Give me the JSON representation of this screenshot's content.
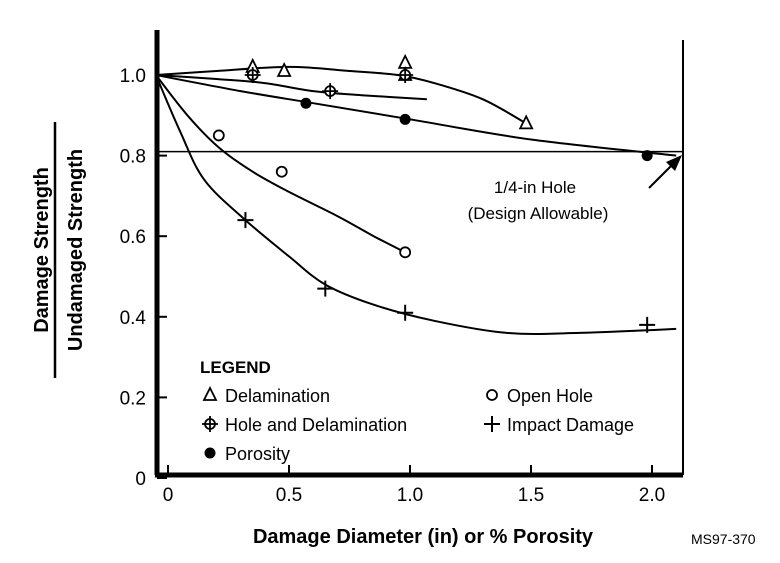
{
  "chart_data": {
    "type": "scatter",
    "title": "",
    "xlabel": "Damage Diameter (in) or % Porosity",
    "ylabel_top": "Damage Strength",
    "ylabel_bottom": "Undamaged Strength",
    "xlim": [
      -0.05,
      2.1
    ],
    "ylim": [
      0,
      1.13
    ],
    "x_ticks": [
      0,
      0.5,
      1.0,
      1.5,
      2.0
    ],
    "x_tick_labels": [
      "0",
      "0.5",
      "1.0",
      "1.5",
      "2.0"
    ],
    "y_ticks": [
      0,
      0.2,
      0.4,
      0.6,
      0.8,
      1.0
    ],
    "y_tick_labels": [
      "0",
      "0.2",
      "0.4",
      "0.6",
      "0.8",
      "1.0"
    ],
    "grid": false,
    "legend_title": "LEGEND",
    "legend_position": "bottom-left",
    "series": [
      {
        "name": "Delamination",
        "marker": "triangle-open",
        "points": [
          [
            0.35,
            1.02
          ],
          [
            0.48,
            1.01
          ],
          [
            0.98,
            1.03
          ],
          [
            0.98,
            1.0
          ],
          [
            1.48,
            0.88
          ]
        ],
        "curve": [
          [
            -0.05,
            1.0
          ],
          [
            0.2,
            1.01
          ],
          [
            0.5,
            1.02
          ],
          [
            0.75,
            1.01
          ],
          [
            0.95,
            1.0
          ],
          [
            1.1,
            0.98
          ],
          [
            1.3,
            0.94
          ],
          [
            1.48,
            0.88
          ]
        ]
      },
      {
        "name": "Hole and Delamination",
        "marker": "circle-cross",
        "points": [
          [
            0.35,
            1.0
          ],
          [
            0.67,
            0.96
          ],
          [
            0.98,
            1.0
          ]
        ],
        "curve": [
          [
            -0.05,
            1.0
          ],
          [
            0.2,
            0.99
          ],
          [
            0.4,
            0.98
          ],
          [
            0.6,
            0.96
          ],
          [
            0.8,
            0.95
          ],
          [
            1.07,
            0.94
          ]
        ]
      },
      {
        "name": "Porosity",
        "marker": "circle-filled",
        "points": [
          [
            0.57,
            0.93
          ],
          [
            0.98,
            0.89
          ],
          [
            1.98,
            0.8
          ]
        ],
        "curve": [
          [
            -0.05,
            1.0
          ],
          [
            0.3,
            0.96
          ],
          [
            0.6,
            0.93
          ],
          [
            1.0,
            0.89
          ],
          [
            1.5,
            0.84
          ],
          [
            2.1,
            0.8
          ]
        ]
      },
      {
        "name": "Open Hole",
        "marker": "circle-open",
        "points": [
          [
            0.21,
            0.85
          ],
          [
            0.47,
            0.76
          ],
          [
            0.98,
            0.56
          ]
        ],
        "curve": [
          [
            -0.05,
            1.0
          ],
          [
            0.08,
            0.9
          ],
          [
            0.21,
            0.82
          ],
          [
            0.35,
            0.76
          ],
          [
            0.5,
            0.71
          ],
          [
            0.7,
            0.65
          ],
          [
            0.85,
            0.6
          ],
          [
            0.98,
            0.56
          ]
        ]
      },
      {
        "name": "Impact Damage",
        "marker": "plus",
        "points": [
          [
            0.32,
            0.64
          ],
          [
            0.65,
            0.47
          ],
          [
            0.98,
            0.41
          ],
          [
            1.98,
            0.38
          ]
        ],
        "curve": [
          [
            -0.05,
            1.0
          ],
          [
            0.05,
            0.86
          ],
          [
            0.15,
            0.74
          ],
          [
            0.32,
            0.64
          ],
          [
            0.5,
            0.55
          ],
          [
            0.65,
            0.48
          ],
          [
            0.85,
            0.43
          ],
          [
            1.1,
            0.39
          ],
          [
            1.4,
            0.36
          ],
          [
            1.7,
            0.36
          ],
          [
            2.1,
            0.37
          ]
        ]
      }
    ],
    "reference_line": {
      "y": 0.81
    },
    "annotation": {
      "line1": "1/4-in Hole",
      "line2": "(Design Allowable)"
    }
  },
  "figure_id": "MS97-370"
}
